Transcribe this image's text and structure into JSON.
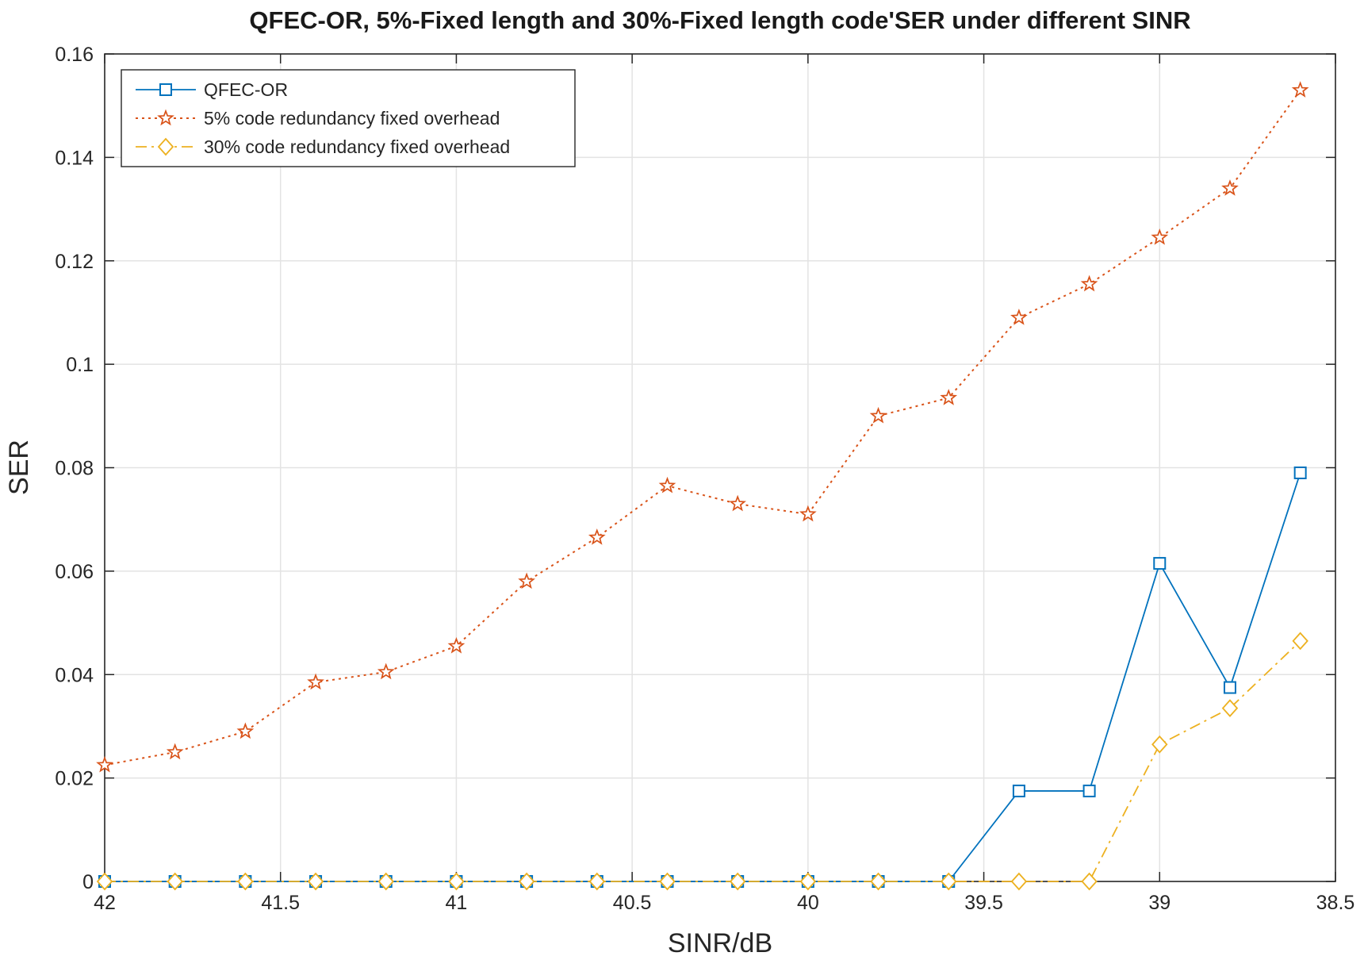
{
  "chart_data": {
    "type": "line",
    "title": "QFEC-OR, 5%-Fixed length and 30%-Fixed length code'SER  under different SINR",
    "xlabel": "SINR/dB",
    "ylabel": "SER",
    "xlim": [
      42,
      38.5
    ],
    "x_reversed": true,
    "ylim": [
      0,
      0.16
    ],
    "xticks": [
      42,
      41.5,
      41,
      40.5,
      40,
      39.5,
      39,
      38.5
    ],
    "xtick_labels": [
      "42",
      "41.5",
      "41",
      "40.5",
      "40",
      "39.5",
      "39",
      "38.5"
    ],
    "yticks": [
      0,
      0.02,
      0.04,
      0.06,
      0.08,
      0.1,
      0.12,
      0.14,
      0.16
    ],
    "ytick_labels": [
      "0",
      "0.02",
      "0.04",
      "0.06",
      "0.08",
      "0.1",
      "0.12",
      "0.14",
      "0.16"
    ],
    "grid": true,
    "legend_position": "top-left",
    "x": [
      42,
      41.8,
      41.6,
      41.4,
      41.2,
      41,
      40.8,
      40.6,
      40.4,
      40.2,
      40,
      39.8,
      39.6,
      39.4,
      39.2,
      39,
      38.8,
      38.6
    ],
    "series": [
      {
        "name": "QFEC-OR",
        "color": "#0072BD",
        "line_style": "solid",
        "marker": "square",
        "values": [
          0,
          0,
          0,
          0,
          0,
          0,
          0,
          0,
          0,
          0,
          0,
          0,
          0,
          0.0175,
          0.0175,
          0.0615,
          0.0375,
          0.079
        ]
      },
      {
        "name": "5% code redundancy fixed overhead",
        "color": "#D95319",
        "line_style": "dotted",
        "marker": "star",
        "values": [
          0.0225,
          0.025,
          0.029,
          0.0385,
          0.0405,
          0.0455,
          0.058,
          0.0665,
          0.0765,
          0.073,
          0.071,
          0.09,
          0.0935,
          0.109,
          0.1155,
          0.1245,
          0.134,
          0.153
        ]
      },
      {
        "name": "30% code redundancy fixed overhead",
        "color": "#EDB120",
        "line_style": "dashdot",
        "marker": "diamond",
        "values": [
          0,
          0,
          0,
          0,
          0,
          0,
          0,
          0,
          0,
          0,
          0,
          0,
          0,
          0,
          0,
          0.0265,
          0.0335,
          0.0465
        ]
      }
    ]
  }
}
